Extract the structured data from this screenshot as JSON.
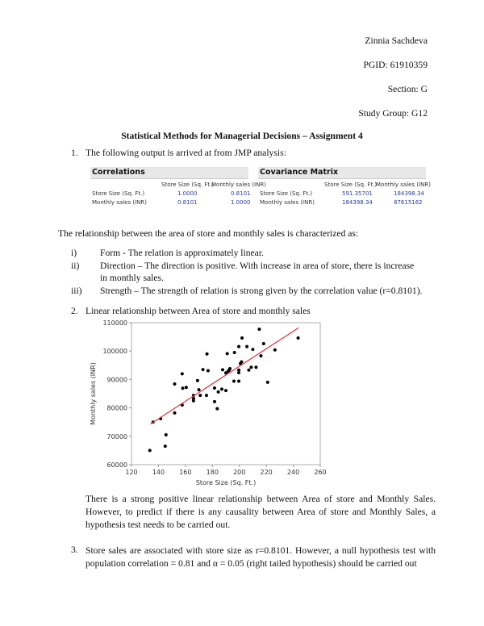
{
  "header": {
    "name": "Zinnia Sachdeva",
    "pgid": "PGID: 61910359",
    "section": "Section: G",
    "group": "Study Group: G12"
  },
  "title": "Statistical Methods for Managerial Decisions – Assignment 4",
  "q1": {
    "num": "1.",
    "text": "The following output is arrived at from JMP analysis:"
  },
  "correlations": {
    "title": "Correlations",
    "cols": [
      "Store Size (Sq. Ft.)",
      "Monthly sales (INR)"
    ],
    "rows": [
      {
        "label": "Store Size (Sq. Ft.)",
        "values": [
          "1.0000",
          "0.8101"
        ]
      },
      {
        "label": "Monthly sales (INR)",
        "values": [
          "0.8101",
          "1.0000"
        ]
      }
    ]
  },
  "covariance": {
    "title": "Covariance Matrix",
    "cols": [
      "Store Size (Sq. Ft.)",
      "Monthly sales (INR)"
    ],
    "rows": [
      {
        "label": "Store Size (Sq. Ft.)",
        "values": [
          "591.35701",
          "184398.34"
        ]
      },
      {
        "label": "Monthly sales (INR)",
        "values": [
          "184398.34",
          "87615162"
        ]
      }
    ]
  },
  "relationship": "The relationship between the area of store and monthly sales is characterized as:",
  "items": [
    {
      "num": "i)",
      "text": "Form -  The relation is approximately linear."
    },
    {
      "num": "ii)",
      "text": "Direction – The direction is positive. With increase in area of store, there is increase",
      "text2": "in monthly sales."
    },
    {
      "num": "iii)",
      "text": "Strength – The strength of relation is strong given by the correlation value (r=0.8101)."
    }
  ],
  "q2": {
    "num": "2.",
    "text": "Linear relationship between Area of store and monthly sales"
  },
  "chart_data": {
    "type": "scatter",
    "title": "",
    "xlabel": "Store Size (Sq. Ft.)",
    "ylabel": "Monthly sales (INR)",
    "xlim": [
      120,
      260
    ],
    "ylim": [
      60000,
      110000
    ],
    "xticks": [
      "120",
      "140",
      "160",
      "180",
      "200",
      "220",
      "240",
      "260"
    ],
    "yticks": [
      "60000",
      "70000",
      "80000",
      "90000",
      "100000",
      "110000"
    ],
    "points": [
      [
        133.6,
        65000
      ],
      [
        136,
        75000
      ],
      [
        141.6,
        76200
      ],
      [
        145.6,
        70500
      ],
      [
        145,
        66500
      ],
      [
        152,
        88400
      ],
      [
        152,
        78200
      ],
      [
        157.6,
        92000
      ],
      [
        158,
        86900
      ],
      [
        157.6,
        81000
      ],
      [
        160.6,
        87200
      ],
      [
        166,
        84400
      ],
      [
        166,
        83300
      ],
      [
        166,
        82500
      ],
      [
        169,
        89600
      ],
      [
        170,
        86400
      ],
      [
        171,
        84400
      ],
      [
        173,
        93500
      ],
      [
        176,
        99000
      ],
      [
        175.6,
        84400
      ],
      [
        176.8,
        93100
      ],
      [
        181.6,
        87000
      ],
      [
        181.6,
        82200
      ],
      [
        183.6,
        79700
      ],
      [
        184.4,
        85600
      ],
      [
        187,
        86600
      ],
      [
        187.6,
        93400
      ],
      [
        190,
        86100
      ],
      [
        190,
        92300
      ],
      [
        191,
        99100
      ],
      [
        191.6,
        92800
      ],
      [
        192.4,
        93300
      ],
      [
        193,
        93800
      ],
      [
        196,
        89400
      ],
      [
        196.4,
        99500
      ],
      [
        199.6,
        89400
      ],
      [
        199.6,
        101600
      ],
      [
        199.6,
        93300
      ],
      [
        199.6,
        92400
      ],
      [
        200.8,
        95600
      ],
      [
        201.6,
        96200
      ],
      [
        202,
        104600
      ],
      [
        205.6,
        101600
      ],
      [
        207,
        93300
      ],
      [
        208.8,
        94300
      ],
      [
        210,
        100600
      ],
      [
        212.4,
        94300
      ],
      [
        214.8,
        107700
      ],
      [
        216,
        98300
      ],
      [
        218,
        102600
      ],
      [
        221,
        89000
      ],
      [
        226.4,
        100400
      ],
      [
        243.6,
        104600
      ]
    ],
    "fit_line": [
      [
        134,
        74300
      ],
      [
        244,
        108200
      ]
    ],
    "colors": {
      "points": "#000000",
      "fit": "#d9434f"
    }
  },
  "q2_text": "There is a strong positive linear relationship between Area of store and Monthly Sales. However, to predict if there is any causality between Area of store and Monthly Sales, a hypothesis test needs to be carried out.",
  "q3": {
    "num": "3.",
    "text": "Store sales are associated with store size as r=0.8101. However, a null hypothesis test with population correlation = 0.81 and α = 0.05 (right tailed hypothesis) should be carried out"
  }
}
